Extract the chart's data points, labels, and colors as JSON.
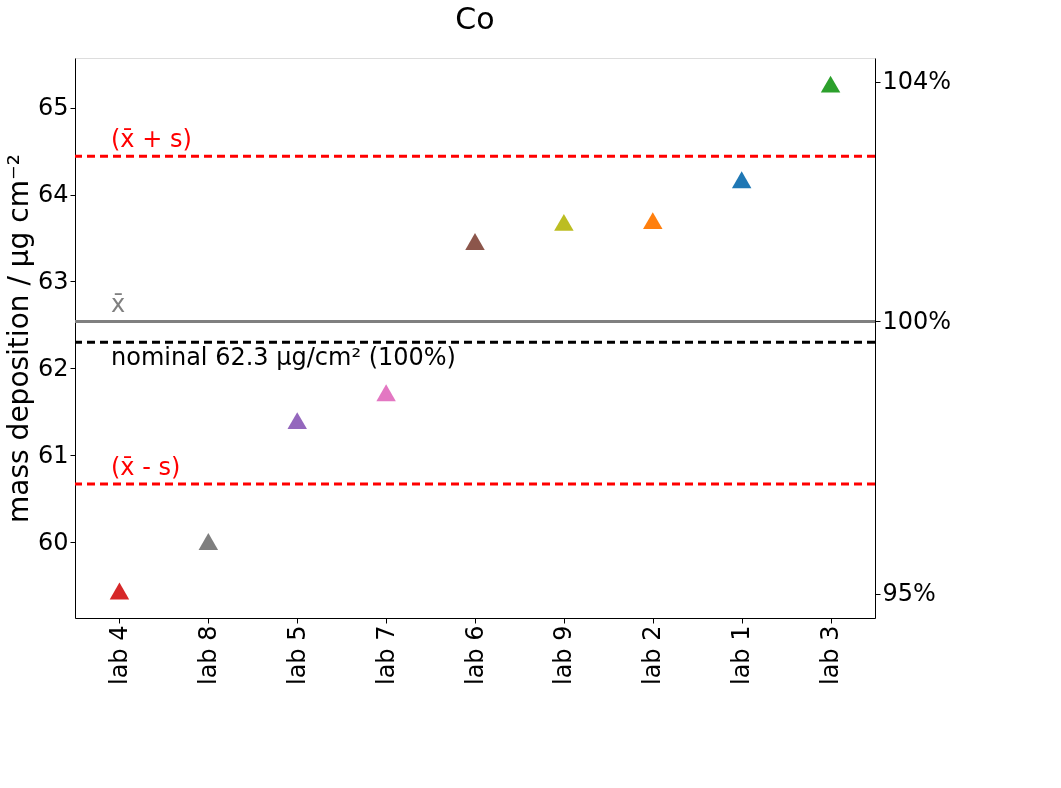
{
  "chart_data": {
    "type": "scatter",
    "title": "Co",
    "ylabel": "mass deposition / µg cm⁻²",
    "categories": [
      "lab 4",
      "lab 8",
      "lab 5",
      "lab 7",
      "lab 6",
      "lab 9",
      "lab 2",
      "lab 1",
      "lab 3"
    ],
    "series": [
      {
        "values": [
          59.44,
          60.01,
          61.4,
          61.72,
          63.46,
          63.68,
          63.7,
          64.17,
          65.27
        ],
        "colors": [
          "#d62728",
          "#7f7f7f",
          "#9467bd",
          "#e377c2",
          "#8c564b",
          "#bcbd22",
          "#ff7f0e",
          "#1f77b4",
          "#2ca02c"
        ]
      }
    ],
    "marker": "triangle",
    "ylim": [
      59.13,
      65.57
    ],
    "yticks": [
      60,
      61,
      62,
      63,
      64,
      65
    ],
    "y2lim": [
      94.55,
      104.84
    ],
    "y2ticks": [
      {
        "value": 95.0,
        "label": "95%"
      },
      {
        "value": 100,
        "label": "100%"
      },
      {
        "value": 104.4,
        "label": "104%"
      }
    ],
    "ref_lines": [
      {
        "axis": "y",
        "value": 64.44,
        "label": "(x̄ + s)",
        "color": "#ff0000",
        "line_style": "dashed"
      },
      {
        "axis": "y",
        "value": 62.54,
        "label": "x̄",
        "color": "#808080",
        "line_style": "solid"
      },
      {
        "axis": "y",
        "value": 62.3,
        "label": "nominal 62.3 µg/cm² (100%)",
        "color": "#000000",
        "line_style": "dashed"
      },
      {
        "axis": "y",
        "value": 60.67,
        "label": "(x̄ - s)",
        "color": "#ff0000",
        "line_style": "dashed"
      }
    ],
    "grid": false
  }
}
